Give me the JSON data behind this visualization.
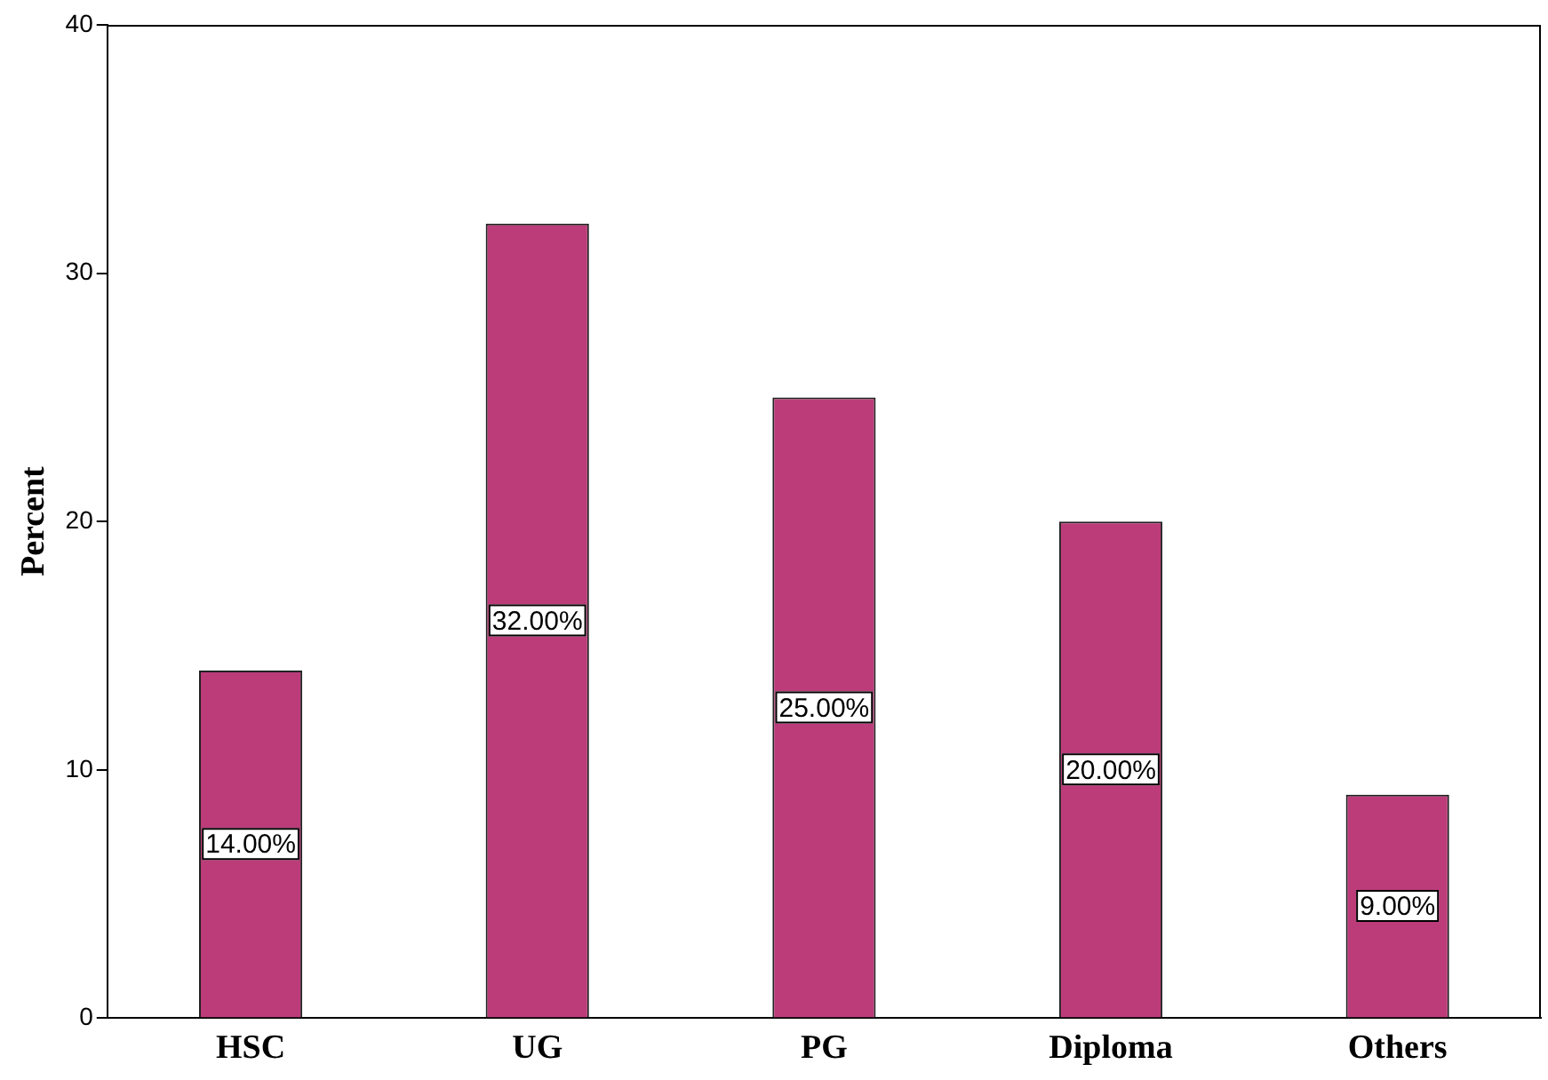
{
  "chart_data": {
    "type": "bar",
    "ylabel": "Percent",
    "categories": [
      "HSC",
      "UG",
      "PG",
      "Diploma",
      "Others"
    ],
    "values": [
      14,
      32,
      25,
      20,
      9
    ],
    "color": "#bc3c7a",
    "value_labels": [
      "14.00%",
      "32.00%",
      "25.00%",
      "20.00%",
      "9.00%"
    ],
    "ylim": [
      0,
      40
    ],
    "yticks": [
      0,
      10,
      20,
      30,
      40
    ],
    "grid": false,
    "legend": false
  }
}
